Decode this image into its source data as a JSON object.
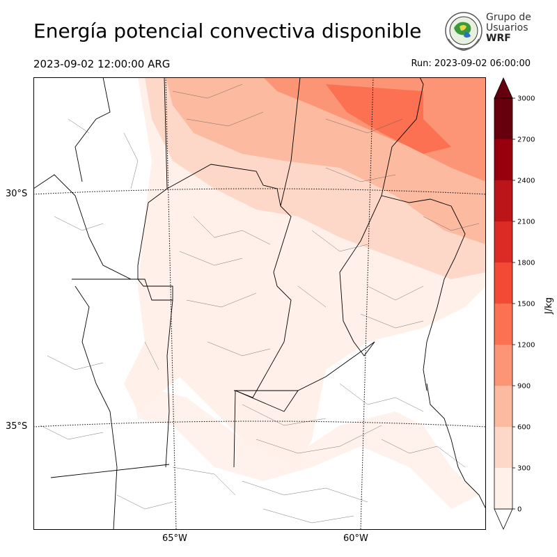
{
  "header": {
    "title": "Energía potencial convectiva disponible",
    "valid_time": "2023-09-02 12:00:00 ARG",
    "run_time": "Run: 2023-09-02 06:00:00"
  },
  "logo": {
    "line1": "Grupo de",
    "line2": "Usuarios",
    "line3": "WRF"
  },
  "map": {
    "lat_labels": [
      "30°S",
      "35°S"
    ],
    "lon_labels": [
      "65°W",
      "60°W"
    ]
  },
  "colorbar": {
    "unit": "J/kg",
    "ticks": [
      "0",
      "300",
      "600",
      "900",
      "1200",
      "1500",
      "1800",
      "2100",
      "2400",
      "2700",
      "3000"
    ],
    "colors": [
      "#fff0ea",
      "#fdd8c8",
      "#fcbaa0",
      "#fc9575",
      "#fb7151",
      "#f34a36",
      "#dc2a25",
      "#bb151a",
      "#99000d",
      "#67000d"
    ]
  }
}
